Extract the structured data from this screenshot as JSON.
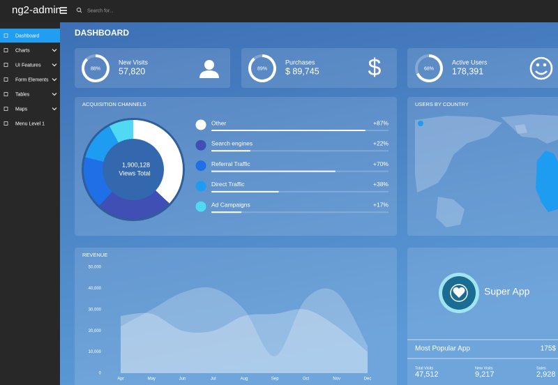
{
  "header": {
    "logo": "ng2-admin",
    "search_placeholder": "Search for..."
  },
  "sidebar": {
    "items": [
      "Dashboard",
      "Charts",
      "UI Features",
      "Form Elements",
      "Tables",
      "Maps",
      "Menu Level 1"
    ]
  },
  "page_title": "DASHBOARD",
  "stats": [
    {
      "percent": 88,
      "percent_label": "88%",
      "label": "New Visits",
      "value": "57,820"
    },
    {
      "percent": 89,
      "percent_label": "89%",
      "label": "Purchases",
      "value": "$ 89,745"
    },
    {
      "percent": 68,
      "percent_label": "68%",
      "label": "Active Users",
      "value": "178,391"
    }
  ],
  "acquisition": {
    "title": "ACQUISITION CHANNELS",
    "total": "1,900,128",
    "total_label": "Views Total",
    "channels": [
      {
        "name": "Other",
        "value": 87,
        "label": "+87%",
        "share": 37,
        "color": "#ffffff"
      },
      {
        "name": "Search engines",
        "value": 22,
        "label": "+22%",
        "share": 25,
        "color": "#3f4fb4"
      },
      {
        "name": "Referral Traffic",
        "value": 70,
        "label": "+70%",
        "share": 17,
        "color": "#1f6fe6"
      },
      {
        "name": "Direct Traffic",
        "value": 38,
        "label": "+38%",
        "share": 13,
        "color": "#1e9cf2"
      },
      {
        "name": "Ad Campaigns",
        "value": 17,
        "label": "+17%",
        "share": 8,
        "color": "#4fd9f2"
      }
    ]
  },
  "countries": {
    "title": "USERS BY COUNTRY"
  },
  "revenue": {
    "title": "REVENUE",
    "categories": [
      "Apr",
      "May",
      "Jun",
      "Jul",
      "Aug",
      "Sep",
      "Oct",
      "Nov",
      "Dec"
    ],
    "series": [
      {
        "color": "rgba(255,255,255,0.22)",
        "values": [
          22000,
          30000,
          38000,
          40000,
          30000,
          8000,
          35000,
          38000,
          13000
        ]
      },
      {
        "color": "rgba(255,255,255,0.28)",
        "values": [
          27000,
          28000,
          20000,
          20000,
          27000,
          28000,
          30000,
          22000,
          10000
        ]
      }
    ],
    "ylim": [
      0,
      50000
    ],
    "yticks": [
      0,
      {
        "value": 10000,
        "label": "10,000"
      },
      {
        "value": 20000,
        "label": "20,000"
      },
      {
        "value": 30000,
        "label": "30,000"
      },
      {
        "value": 40000,
        "label": "40,000"
      },
      {
        "value": 50000,
        "label": "50,000"
      }
    ]
  },
  "app": {
    "name": "Super App",
    "popular_label": "Most Popular App",
    "price": "175$",
    "metrics": [
      {
        "label": "Total Visits",
        "value": "47,512"
      },
      {
        "label": "New Visits",
        "value": "9,217"
      },
      {
        "label": "Sales",
        "value": "2,928"
      }
    ]
  }
}
